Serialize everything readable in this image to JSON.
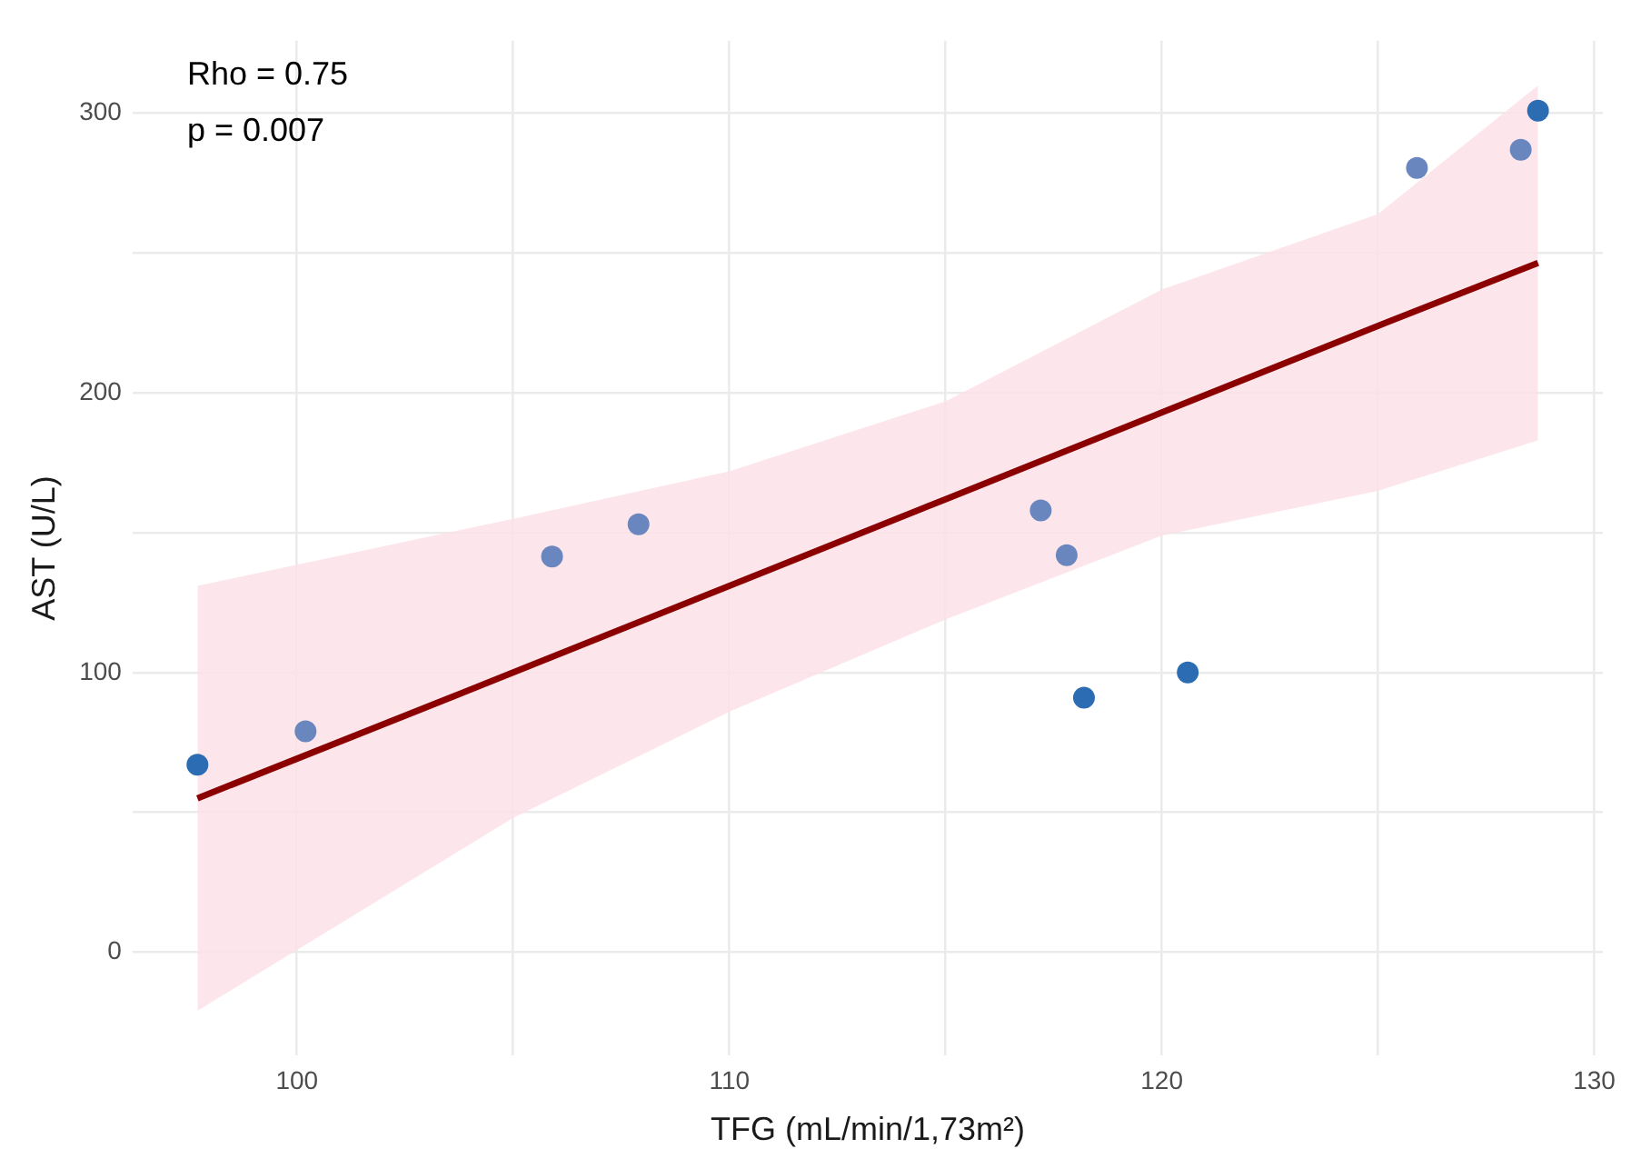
{
  "chart_data": {
    "type": "scatter",
    "xlabel": "TFG (mL/min/1,73m²)",
    "ylabel": "AST (U/L)",
    "annotations": [
      "Rho = 0.75",
      "p = 0.007"
    ],
    "xlim": [
      96.2,
      130.2
    ],
    "ylim": [
      -37,
      326
    ],
    "xticks": [
      100,
      {
        "value": 105,
        "label": null
      },
      110,
      {
        "value": 115,
        "label": null
      },
      120,
      {
        "value": 125,
        "label": null
      },
      130
    ],
    "yticks": [
      0,
      {
        "value": 50,
        "label": null
      },
      100,
      {
        "value": 150,
        "label": null
      },
      200,
      {
        "value": 250,
        "label": null
      },
      300
    ],
    "grid": true,
    "series": [
      {
        "marker": "circle",
        "x": [
          97.7,
          100.2,
          105.9,
          107.9,
          117.2,
          117.8,
          118.2,
          120.6,
          125.9,
          128.3,
          128.7
        ],
        "values": [
          67,
          79,
          141.5,
          153,
          158,
          142,
          91,
          100,
          280.5,
          287,
          301
        ],
        "colors": [
          "#2b6cb3",
          "#6a86bf",
          "#6a86bf",
          "#6a86bf",
          "#6a86bf",
          "#6a86bf",
          "#2b6cb3",
          "#2b6cb3",
          "#6a86bf",
          "#6a86bf",
          "#2b6cb3"
        ]
      },
      {
        "type": "line",
        "marker": "none",
        "color": "#8b0000",
        "x": [
          97.7,
          105,
          110,
          115,
          120,
          125,
          128.7
        ],
        "values": [
          55,
          100,
          131,
          162,
          193,
          224,
          246.5
        ],
        "lower": [
          -21,
          48,
          86,
          119,
          149,
          165,
          183
        ],
        "upper": [
          131,
          155,
          172,
          197,
          237,
          264,
          310
        ]
      }
    ]
  }
}
